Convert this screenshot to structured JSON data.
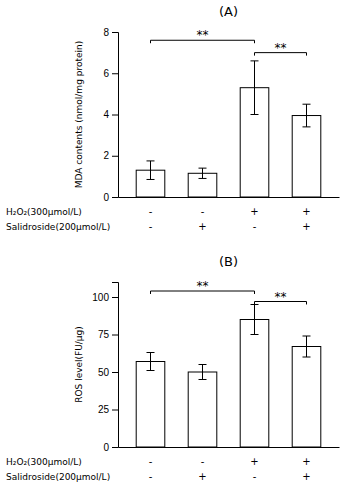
{
  "chart_data": [
    {
      "type": "bar",
      "title": "(A)",
      "ylabel": "MDA contents (nmol/mg protein)",
      "categories": [
        null,
        null,
        null,
        null
      ],
      "values": [
        1.3,
        1.15,
        5.3,
        3.95
      ],
      "errors": [
        0.45,
        0.25,
        1.3,
        0.55
      ],
      "color": "#ffffff",
      "ylim": [
        0,
        8
      ],
      "yticks": [
        0,
        2,
        4,
        6,
        8
      ],
      "grid": false,
      "tick_labels": "y",
      "annotations": [
        {
          "text": "**",
          "from": 0,
          "to": 2,
          "y": 7.6
        },
        {
          "text": "**",
          "from": 2,
          "to": 3,
          "y": 7.0
        }
      ],
      "row_labels": [
        {
          "label": "H₂O₂(300μmol/L)",
          "values": [
            "-",
            "-",
            "+",
            "+"
          ]
        },
        {
          "label": "Salidroside(200μmol/L)",
          "values": [
            "-",
            "+",
            "-",
            "+"
          ]
        }
      ]
    },
    {
      "type": "bar",
      "title": "(B)",
      "ylabel": "ROS level(FU/μg)",
      "categories": [
        null,
        null,
        null,
        null
      ],
      "values": [
        57,
        50,
        85,
        67
      ],
      "errors": [
        6,
        5,
        10,
        7
      ],
      "color": "#ffffff",
      "ylim": [
        0,
        110
      ],
      "yticks": [
        0,
        25,
        50,
        75,
        100
      ],
      "grid": false,
      "tick_labels": "y",
      "annotations": [
        {
          "text": "**",
          "from": 0,
          "to": 2,
          "y": 104
        },
        {
          "text": "**",
          "from": 2,
          "to": 3,
          "y": 97
        }
      ],
      "row_labels": [
        {
          "label": "H₂O₂(300μmol/L)",
          "values": [
            "-",
            "-",
            "+",
            "+"
          ]
        },
        {
          "label": "Salidroside(200μmol/L)",
          "values": [
            "-",
            "+",
            "-",
            "+"
          ]
        }
      ]
    }
  ]
}
